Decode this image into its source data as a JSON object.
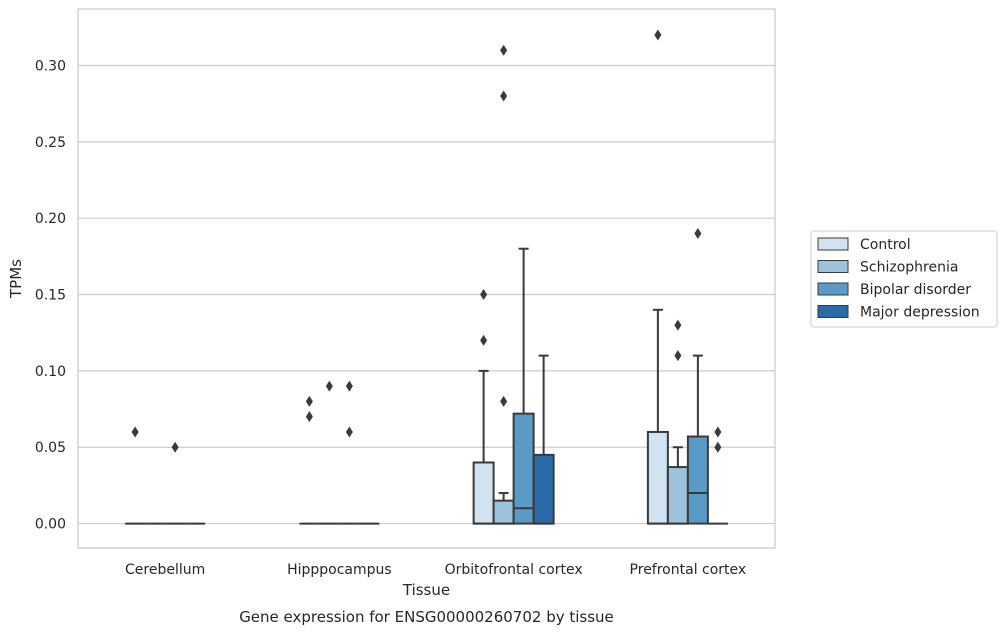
{
  "chart_data": {
    "type": "box",
    "title": "",
    "caption": "Gene expression for ENSG00000260702 by tissue",
    "xlabel": "Tissue",
    "ylabel": "TPMs",
    "ylim": [
      -0.016,
      0.337
    ],
    "yticks": [
      0.0,
      0.05,
      0.1,
      0.15,
      0.2,
      0.25,
      0.3
    ],
    "ytick_labels": [
      "0.00",
      "0.05",
      "0.10",
      "0.15",
      "0.20",
      "0.25",
      "0.30"
    ],
    "grid": "horizontal",
    "legend_position": "right",
    "categories": [
      "Cerebellum",
      "Hipppocampus",
      "Orbitofrontal cortex",
      "Prefrontal cortex"
    ],
    "series": [
      {
        "name": "Control",
        "color": "#d1e2f0",
        "boxes": [
          {
            "q1": 0,
            "median": 0,
            "q3": 0,
            "whisker_low": 0,
            "whisker_high": 0,
            "outliers": [
              0.06
            ]
          },
          {
            "q1": 0,
            "median": 0,
            "q3": 0,
            "whisker_low": 0,
            "whisker_high": 0,
            "outliers": [
              0.08,
              0.07
            ]
          },
          {
            "q1": 0,
            "median": 0,
            "q3": 0.04,
            "whisker_low": 0,
            "whisker_high": 0.1,
            "outliers": [
              0.15,
              0.12
            ]
          },
          {
            "q1": 0,
            "median": 0,
            "q3": 0.06,
            "whisker_low": 0,
            "whisker_high": 0.14,
            "outliers": [
              0.32
            ]
          }
        ]
      },
      {
        "name": "Schizophrenia",
        "color": "#9dc3dc",
        "boxes": [
          {
            "q1": 0,
            "median": 0,
            "q3": 0,
            "whisker_low": 0,
            "whisker_high": 0,
            "outliers": []
          },
          {
            "q1": 0,
            "median": 0,
            "q3": 0,
            "whisker_low": 0,
            "whisker_high": 0,
            "outliers": [
              0.09
            ]
          },
          {
            "q1": 0,
            "median": 0,
            "q3": 0.015,
            "whisker_low": 0,
            "whisker_high": 0.02,
            "outliers": [
              0.31,
              0.28,
              0.08
            ]
          },
          {
            "q1": 0,
            "median": 0,
            "q3": 0.037,
            "whisker_low": 0,
            "whisker_high": 0.05,
            "outliers": [
              0.13,
              0.11
            ]
          }
        ]
      },
      {
        "name": "Bipolar disorder",
        "color": "#5b9ac6",
        "boxes": [
          {
            "q1": 0,
            "median": 0,
            "q3": 0,
            "whisker_low": 0,
            "whisker_high": 0,
            "outliers": [
              0.05
            ]
          },
          {
            "q1": 0,
            "median": 0,
            "q3": 0,
            "whisker_low": 0,
            "whisker_high": 0,
            "outliers": [
              0.09,
              0.06
            ]
          },
          {
            "q1": 0,
            "median": 0.01,
            "q3": 0.072,
            "whisker_low": 0,
            "whisker_high": 0.18,
            "outliers": []
          },
          {
            "q1": 0,
            "median": 0.02,
            "q3": 0.057,
            "whisker_low": 0,
            "whisker_high": 0.11,
            "outliers": [
              0.19
            ]
          }
        ]
      },
      {
        "name": "Major depression",
        "color": "#2a6aa8",
        "boxes": [
          {
            "q1": 0,
            "median": 0,
            "q3": 0,
            "whisker_low": 0,
            "whisker_high": 0,
            "outliers": []
          },
          {
            "q1": 0,
            "median": 0,
            "q3": 0,
            "whisker_low": 0,
            "whisker_high": 0,
            "outliers": []
          },
          {
            "q1": 0,
            "median": 0,
            "q3": 0.045,
            "whisker_low": 0,
            "whisker_high": 0.11,
            "outliers": []
          },
          {
            "q1": 0,
            "median": 0,
            "q3": 0,
            "whisker_low": 0,
            "whisker_high": 0,
            "outliers": [
              0.06,
              0.05
            ]
          }
        ]
      }
    ]
  }
}
